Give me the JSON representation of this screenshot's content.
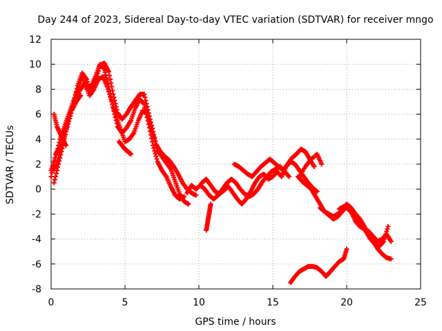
{
  "chart_data": {
    "type": "scatter",
    "title": "Day 244 of 2023, Sidereal Day-to-day VTEC variation (SDTVAR) for receiver mngo",
    "xlabel": "GPS time / hours",
    "ylabel": "SDTVAR / TECUs",
    "xlim": [
      0,
      25
    ],
    "ylim": [
      -8,
      12
    ],
    "xticks": [
      0,
      5,
      10,
      15,
      20,
      25
    ],
    "yticks": [
      -8,
      -6,
      -4,
      -2,
      0,
      2,
      4,
      6,
      8,
      10,
      12
    ],
    "grid": true,
    "marker": "+",
    "series_color": "#ff0000",
    "series": [
      {
        "name": "trace-1",
        "x": [
          0.0,
          0.3,
          0.6,
          0.9,
          1.2,
          1.5,
          1.8,
          2.1,
          2.4,
          2.7,
          3.0,
          3.3,
          3.6,
          3.9,
          4.2,
          4.5,
          4.8,
          5.1,
          5.4,
          5.7,
          6.0,
          6.3,
          6.6,
          6.9,
          7.2,
          7.5,
          7.8,
          8.1,
          8.4,
          8.7,
          9.0,
          9.3
        ],
        "y": [
          1.0,
          2.8,
          3.4,
          4.4,
          5.8,
          6.8,
          8.3,
          9.3,
          8.8,
          7.6,
          8.6,
          9.9,
          10.1,
          9.4,
          7.6,
          6.1,
          5.6,
          6.0,
          6.6,
          7.1,
          7.6,
          7.6,
          6.1,
          4.6,
          3.1,
          2.6,
          2.1,
          1.6,
          0.6,
          -0.4,
          -1.0,
          -1.2
        ]
      },
      {
        "name": "trace-2",
        "x": [
          0.0,
          0.3,
          0.6,
          0.9,
          1.2,
          1.5,
          1.8,
          2.1,
          2.4,
          2.7,
          3.0,
          3.3,
          3.6,
          3.9,
          4.2,
          4.5,
          4.8,
          5.1,
          5.4,
          5.7,
          6.0,
          6.3,
          6.6,
          6.9,
          7.2,
          7.5,
          7.8,
          8.1,
          8.4,
          8.7,
          9.0
        ],
        "y": [
          1.5,
          2.5,
          4.0,
          5.0,
          6.0,
          7.0,
          8.0,
          9.0,
          8.0,
          8.2,
          9.0,
          10.0,
          9.6,
          8.2,
          6.5,
          5.0,
          4.5,
          4.9,
          5.5,
          6.5,
          7.2,
          6.8,
          5.2,
          3.5,
          2.2,
          1.5,
          1.0,
          0.2,
          -0.5,
          -0.8,
          -0.6
        ]
      },
      {
        "name": "trace-3",
        "x": [
          0.2,
          0.5,
          0.8,
          1.1,
          1.4,
          1.7,
          2.0,
          2.3,
          2.6,
          2.9,
          3.2,
          3.5,
          3.8,
          4.1,
          4.4,
          4.7,
          5.0,
          5.3,
          5.6,
          5.9,
          6.2,
          6.5,
          6.8,
          7.1,
          7.4,
          7.7,
          8.0,
          8.3,
          8.6,
          8.9,
          9.2,
          9.5,
          9.8
        ],
        "y": [
          0.5,
          2.0,
          3.5,
          5.2,
          6.5,
          7.5,
          8.0,
          8.5,
          7.5,
          8.0,
          8.8,
          9.0,
          8.2,
          7.0,
          5.8,
          4.8,
          3.8,
          4.0,
          4.5,
          5.5,
          6.3,
          6.0,
          4.8,
          3.6,
          3.0,
          2.6,
          2.3,
          1.8,
          1.2,
          0.5,
          0.0,
          -0.3,
          -0.5
        ]
      },
      {
        "name": "trace-4",
        "x": [
          4.6,
          4.8,
          5.0,
          5.2,
          5.4
        ],
        "y": [
          3.8,
          3.5,
          3.2,
          3.0,
          2.8
        ]
      },
      {
        "name": "trace-5",
        "x": [
          0.2,
          0.4,
          0.6,
          0.8,
          1.0
        ],
        "y": [
          6.0,
          5.0,
          4.5,
          4.0,
          3.5
        ]
      },
      {
        "name": "trace-6",
        "x": [
          0.2,
          0.5,
          0.8,
          1.1,
          1.4,
          1.7,
          2.0
        ],
        "y": [
          1.5,
          2.5,
          3.8,
          5.0,
          6.3,
          7.0,
          7.5
        ]
      },
      {
        "name": "trace-7",
        "x": [
          9.2,
          9.5,
          9.8,
          10.1,
          10.4,
          10.7,
          11.0,
          11.3,
          11.6,
          11.9,
          12.2,
          12.5,
          12.8,
          13.1,
          13.4,
          13.7,
          14.0,
          14.3,
          14.6,
          14.9,
          15.2,
          15.5,
          15.8,
          16.1
        ],
        "y": [
          -0.3,
          0.3,
          0.0,
          0.3,
          0.0,
          -0.5,
          -0.8,
          -0.5,
          0.0,
          0.5,
          0.8,
          0.5,
          0.0,
          -0.4,
          -0.6,
          -0.4,
          0.0,
          0.6,
          1.0,
          1.4,
          1.6,
          1.8,
          1.4,
          1.0
        ]
      },
      {
        "name": "trace-8",
        "x": [
          10.2,
          10.5,
          10.8,
          11.1,
          11.4,
          11.7,
          12.0,
          12.3,
          12.6,
          12.9,
          13.2,
          13.5,
          13.8,
          14.1,
          14.4,
          14.7,
          15.0,
          15.3,
          15.6,
          15.9,
          16.2,
          16.5,
          16.8,
          17.1,
          17.4,
          17.7,
          18.0
        ],
        "y": [
          0.5,
          0.8,
          0.3,
          -0.2,
          -0.4,
          -0.1,
          0.2,
          -0.3,
          -0.8,
          -1.2,
          -0.8,
          -0.2,
          0.5,
          1.0,
          1.2,
          0.8,
          1.0,
          1.4,
          1.0,
          1.8,
          2.2,
          2.0,
          1.5,
          1.0,
          0.5,
          0.1,
          -0.2
        ]
      },
      {
        "name": "trace-9",
        "x": [
          12.4,
          12.7,
          13.0,
          13.3,
          13.6,
          13.9,
          14.2,
          14.5,
          14.8,
          15.1,
          15.4,
          15.7,
          16.0,
          16.3,
          16.6,
          16.9,
          17.2,
          17.5,
          17.8
        ],
        "y": [
          2.0,
          1.8,
          1.5,
          1.2,
          1.0,
          1.4,
          1.8,
          2.1,
          2.4,
          2.1,
          1.8,
          1.5,
          2.0,
          2.5,
          2.8,
          3.2,
          3.0,
          2.4,
          1.8
        ]
      },
      {
        "name": "trace-10",
        "x": [
          16.7,
          17.0,
          17.3,
          17.6,
          17.9,
          18.2,
          18.5,
          18.8,
          19.1,
          19.4,
          19.7,
          20.0,
          20.3,
          20.6,
          20.9,
          21.2,
          21.5,
          21.8,
          22.1,
          22.4,
          22.7,
          23.0
        ],
        "y": [
          1.0,
          0.6,
          0.3,
          0.0,
          -0.6,
          -1.2,
          -1.8,
          -2.0,
          -2.2,
          -2.0,
          -1.6,
          -1.2,
          -1.5,
          -2.0,
          -2.4,
          -3.0,
          -3.6,
          -4.2,
          -4.8,
          -5.2,
          -5.5,
          -5.6
        ]
      },
      {
        "name": "trace-11",
        "x": [
          18.2,
          18.5,
          18.8,
          19.1,
          19.4,
          19.7,
          20.0,
          20.3,
          20.6,
          20.9,
          21.2,
          21.5,
          21.8,
          22.1,
          22.4,
          22.7,
          23.0
        ],
        "y": [
          -1.5,
          -1.8,
          -2.1,
          -2.4,
          -2.2,
          -1.8,
          -1.4,
          -1.8,
          -2.6,
          -3.0,
          -3.2,
          -3.4,
          -3.8,
          -4.2,
          -4.0,
          -3.6,
          -4.2
        ]
      },
      {
        "name": "trace-12",
        "x": [
          19.5,
          19.8,
          20.1,
          20.4,
          20.7,
          21.0,
          21.3,
          21.6,
          21.9,
          22.2,
          22.5,
          22.8
        ],
        "y": [
          -1.6,
          -1.4,
          -1.6,
          -2.0,
          -2.4,
          -2.8,
          -3.4,
          -4.0,
          -4.4,
          -4.6,
          -4.2,
          -3.0
        ]
      },
      {
        "name": "trace-13",
        "x": [
          16.2,
          16.5,
          16.8,
          17.1,
          17.4,
          17.7,
          18.0,
          18.3,
          18.6,
          18.9,
          19.2,
          19.5,
          19.8,
          20.0
        ],
        "y": [
          -7.5,
          -7.0,
          -6.6,
          -6.4,
          -6.2,
          -6.2,
          -6.3,
          -6.6,
          -7.0,
          -6.6,
          -6.2,
          -5.8,
          -5.6,
          -4.8
        ]
      },
      {
        "name": "trace-14",
        "x": [
          10.5,
          10.6,
          10.7,
          10.8
        ],
        "y": [
          -3.3,
          -2.6,
          -1.9,
          -1.2
        ]
      },
      {
        "name": "trace-15",
        "x": [
          16.8,
          17.2,
          17.6,
          18.0,
          18.3
        ],
        "y": [
          1.0,
          1.8,
          2.4,
          2.8,
          2.0
        ]
      }
    ]
  }
}
